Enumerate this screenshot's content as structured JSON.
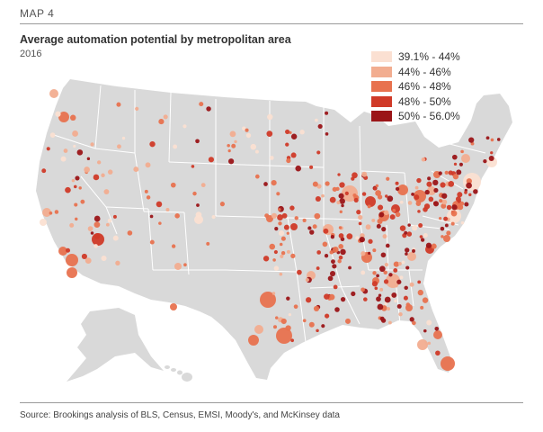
{
  "header": {
    "label": "MAP 4",
    "title": "Average automation potential by metropolitan area",
    "subtitle": "2016"
  },
  "legend": {
    "items": [
      {
        "label": "39.1% - 44%",
        "color": "#fbe0d2"
      },
      {
        "label": "44% - 46%",
        "color": "#f2ad90"
      },
      {
        "label": "46% - 48%",
        "color": "#e8724f"
      },
      {
        "label": "48% - 50%",
        "color": "#d03a28"
      },
      {
        "label": "50% - 56.0%",
        "color": "#9b1518"
      }
    ]
  },
  "map": {
    "land_color": "#d9d9d9",
    "border_color": "#ffffff"
  },
  "footer": {
    "source": "Source: Brookings analysis of BLS, Census, EMSI, Moody's, and McKinsey data"
  }
}
